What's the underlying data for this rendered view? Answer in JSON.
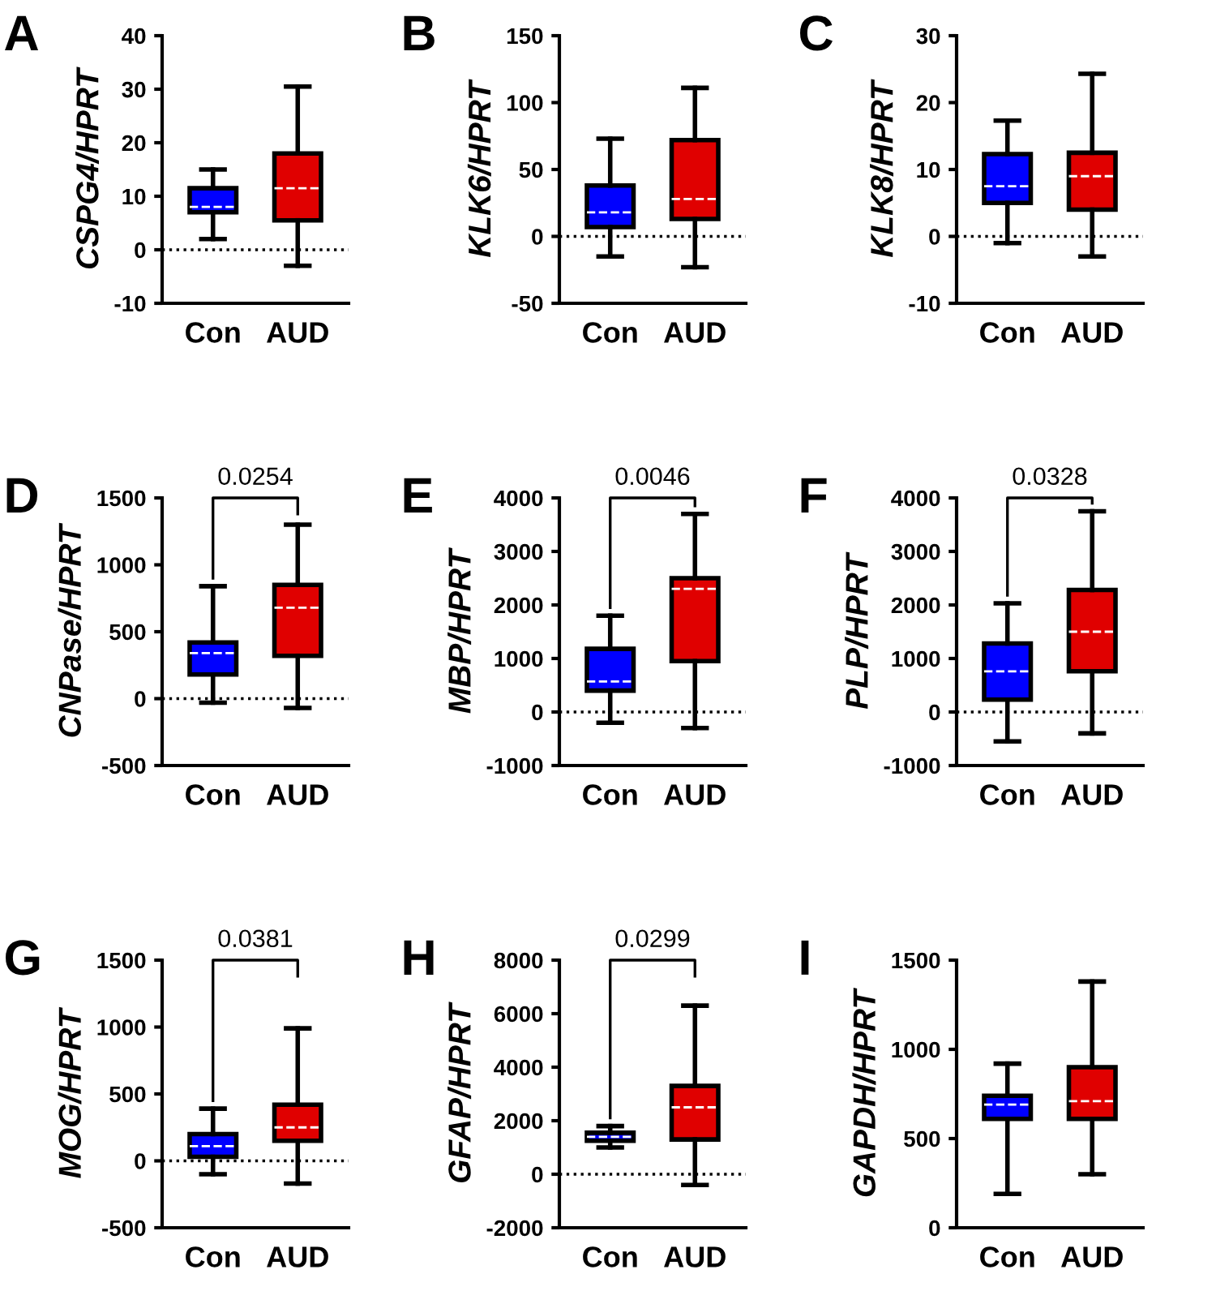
{
  "chart_data": [
    {
      "type": "box",
      "ylabel": "CSPG4/HPRT",
      "categories": [
        "Con",
        "AUD"
      ],
      "colors": [
        "#0000ff",
        "#e00000"
      ],
      "ylim": [
        -10,
        40
      ],
      "yticks": [
        -10,
        0,
        10,
        20,
        30,
        40
      ],
      "grid": false,
      "ref_lines": [
        {
          "axis": "y",
          "value": 0,
          "line_style": "dotted",
          "color": "#000000"
        }
      ],
      "annotations": [
        "A"
      ],
      "boxes": [
        {
          "low": 2,
          "q1": 7,
          "median": 8,
          "q3": 11.5,
          "high": 15
        },
        {
          "low": -3,
          "q1": 5.5,
          "median": 11.5,
          "q3": 18,
          "high": 30.5
        }
      ]
    },
    {
      "type": "box",
      "ylabel": "KLK6/HPRT",
      "categories": [
        "Con",
        "AUD"
      ],
      "colors": [
        "#0000ff",
        "#e00000"
      ],
      "ylim": [
        -50,
        150
      ],
      "yticks": [
        -50,
        0,
        50,
        100,
        150
      ],
      "grid": false,
      "ref_lines": [
        {
          "axis": "y",
          "value": 0,
          "line_style": "dotted",
          "color": "#000000"
        }
      ],
      "annotations": [
        "B"
      ],
      "boxes": [
        {
          "low": -15,
          "q1": 7,
          "median": 18,
          "q3": 38,
          "high": 73
        },
        {
          "low": -23,
          "q1": 13,
          "median": 28,
          "q3": 72,
          "high": 111
        }
      ]
    },
    {
      "type": "box",
      "ylabel": "KLK8/HPRT",
      "categories": [
        "Con",
        "AUD"
      ],
      "colors": [
        "#0000ff",
        "#e00000"
      ],
      "ylim": [
        -10,
        30
      ],
      "yticks": [
        -10,
        0,
        10,
        20,
        30
      ],
      "grid": false,
      "ref_lines": [
        {
          "axis": "y",
          "value": 0,
          "line_style": "dotted",
          "color": "#000000"
        }
      ],
      "annotations": [
        "C"
      ],
      "boxes": [
        {
          "low": -1,
          "q1": 5,
          "median": 7.5,
          "q3": 12.3,
          "high": 17.3
        },
        {
          "low": -3,
          "q1": 4,
          "median": 9,
          "q3": 12.5,
          "high": 24.3
        }
      ]
    },
    {
      "type": "box",
      "ylabel": "CNPase/HPRT",
      "categories": [
        "Con",
        "AUD"
      ],
      "colors": [
        "#0000ff",
        "#e00000"
      ],
      "ylim": [
        -500,
        1500
      ],
      "yticks": [
        -500,
        0,
        500,
        1000,
        1500
      ],
      "grid": false,
      "ref_lines": [
        {
          "axis": "y",
          "value": 0,
          "line_style": "dotted",
          "color": "#000000"
        }
      ],
      "annotations": [
        "D",
        "0.0254"
      ],
      "boxes": [
        {
          "low": -30,
          "q1": 180,
          "median": 340,
          "q3": 420,
          "high": 840
        },
        {
          "low": -70,
          "q1": 320,
          "median": 680,
          "q3": 850,
          "high": 1300
        }
      ]
    },
    {
      "type": "box",
      "ylabel": "MBP/HPRT",
      "categories": [
        "Con",
        "AUD"
      ],
      "colors": [
        "#0000ff",
        "#e00000"
      ],
      "ylim": [
        -1000,
        4000
      ],
      "yticks": [
        -1000,
        0,
        1000,
        2000,
        3000,
        4000
      ],
      "grid": false,
      "ref_lines": [
        {
          "axis": "y",
          "value": 0,
          "line_style": "dotted",
          "color": "#000000"
        }
      ],
      "annotations": [
        "E",
        "0.0046"
      ],
      "boxes": [
        {
          "low": -200,
          "q1": 400,
          "median": 570,
          "q3": 1180,
          "high": 1800
        },
        {
          "low": -300,
          "q1": 950,
          "median": 2300,
          "q3": 2500,
          "high": 3700
        }
      ]
    },
    {
      "type": "box",
      "ylabel": "PLP/HPRT",
      "categories": [
        "Con",
        "AUD"
      ],
      "colors": [
        "#0000ff",
        "#e00000"
      ],
      "ylim": [
        -1000,
        4000
      ],
      "yticks": [
        -1000,
        0,
        1000,
        2000,
        3000,
        4000
      ],
      "grid": false,
      "ref_lines": [
        {
          "axis": "y",
          "value": 0,
          "line_style": "dotted",
          "color": "#000000"
        }
      ],
      "annotations": [
        "F",
        "0.0328"
      ],
      "boxes": [
        {
          "low": -550,
          "q1": 230,
          "median": 760,
          "q3": 1280,
          "high": 2030
        },
        {
          "low": -400,
          "q1": 760,
          "median": 1500,
          "q3": 2280,
          "high": 3750
        }
      ]
    },
    {
      "type": "box",
      "ylabel": "MOG/HPRT",
      "categories": [
        "Con",
        "AUD"
      ],
      "colors": [
        "#0000ff",
        "#e00000"
      ],
      "ylim": [
        -500,
        1500
      ],
      "yticks": [
        -500,
        0,
        500,
        1000,
        1500
      ],
      "grid": false,
      "ref_lines": [
        {
          "axis": "y",
          "value": 0,
          "line_style": "dotted",
          "color": "#000000"
        }
      ],
      "annotations": [
        "G",
        "0.0381"
      ],
      "boxes": [
        {
          "low": -100,
          "q1": 30,
          "median": 110,
          "q3": 200,
          "high": 390
        },
        {
          "low": -170,
          "q1": 150,
          "median": 250,
          "q3": 420,
          "high": 990
        }
      ]
    },
    {
      "type": "box",
      "ylabel": "GFAP/HPRT",
      "categories": [
        "Con",
        "AUD"
      ],
      "colors": [
        "#0000ff",
        "#e00000"
      ],
      "ylim": [
        -2000,
        8000
      ],
      "yticks": [
        -2000,
        0,
        2000,
        4000,
        6000,
        8000
      ],
      "grid": false,
      "ref_lines": [
        {
          "axis": "y",
          "value": 0,
          "line_style": "dotted",
          "color": "#000000"
        }
      ],
      "annotations": [
        "H",
        "0.0299"
      ],
      "boxes": [
        {
          "low": 1000,
          "q1": 1250,
          "median": 1400,
          "q3": 1550,
          "high": 1800
        },
        {
          "low": -400,
          "q1": 1300,
          "median": 2500,
          "q3": 3300,
          "high": 6300
        }
      ]
    },
    {
      "type": "box",
      "ylabel": "GAPDH/HPRT",
      "categories": [
        "Con",
        "AUD"
      ],
      "colors": [
        "#0000ff",
        "#e00000"
      ],
      "ylim": [
        0,
        1500
      ],
      "yticks": [
        0,
        500,
        1000,
        1500
      ],
      "grid": false,
      "annotations": [
        "I"
      ],
      "boxes": [
        {
          "low": 190,
          "q1": 610,
          "median": 690,
          "q3": 740,
          "high": 920
        },
        {
          "low": 300,
          "q1": 610,
          "median": 710,
          "q3": 900,
          "high": 1380
        }
      ]
    }
  ]
}
